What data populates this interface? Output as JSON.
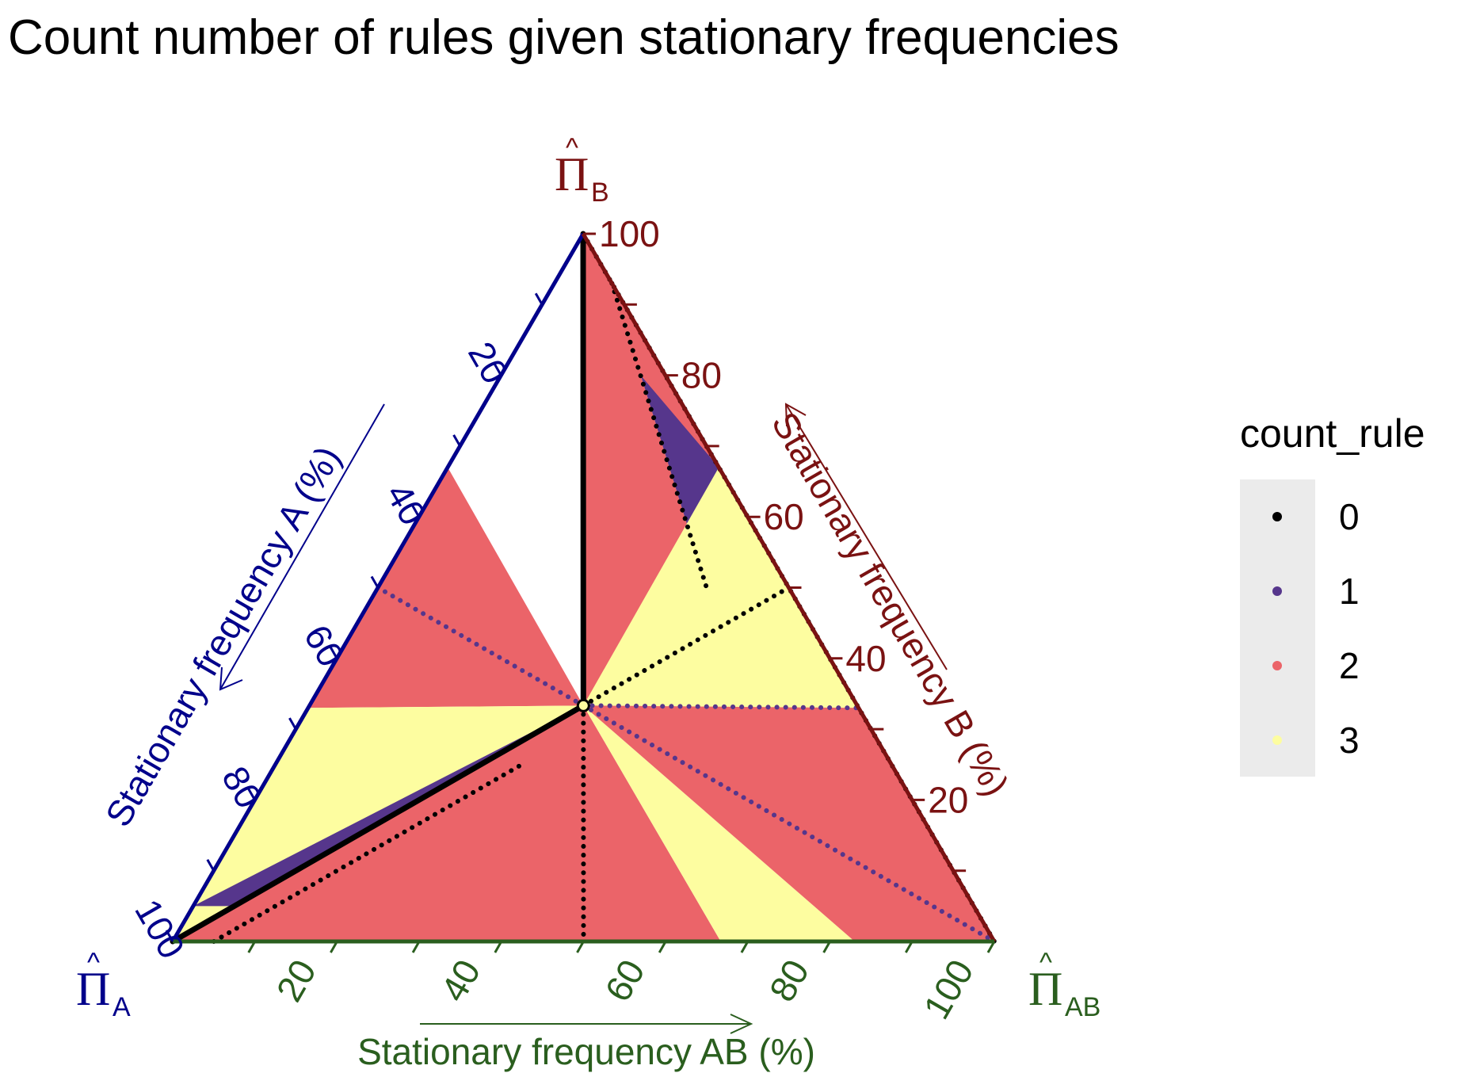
{
  "chart_data": {
    "type": "ternary",
    "title": "Count number of rules given stationary frequencies",
    "vertices": [
      {
        "key": "A",
        "symbol": "Π",
        "subscript": "A",
        "color": "#00008b"
      },
      {
        "key": "B",
        "symbol": "Π",
        "subscript": "B",
        "color": "#7a1212"
      },
      {
        "key": "AB",
        "symbol": "Π",
        "subscript": "AB",
        "color": "#2a5e1e"
      }
    ],
    "axes": {
      "A": {
        "label": "Stationary frequency A (%)",
        "color": "#00008b",
        "ticks": [
          "20",
          "40",
          "60",
          "80",
          "100"
        ]
      },
      "B": {
        "label": "Stationary frequency B (%)",
        "color": "#7a1212",
        "ticks": [
          "20",
          "40",
          "60",
          "80",
          "100"
        ]
      },
      "AB": {
        "label": "Stationary frequency AB (%)",
        "color": "#2a5e1e",
        "ticks": [
          "20",
          "40",
          "60",
          "80",
          "100"
        ]
      }
    },
    "center_point": {
      "A": 33.3,
      "B": 33.3,
      "AB": 33.3
    },
    "regions": [
      {
        "count_rule": 3,
        "vertices": [
          [
            0,
            100,
            0
          ],
          [
            0,
            67,
            33
          ],
          [
            33.3,
            33.3,
            33.3
          ]
        ]
      },
      {
        "count_rule": 2,
        "vertices": [
          [
            0,
            67,
            33
          ],
          [
            0,
            33,
            67
          ],
          [
            33.3,
            33.3,
            33.3
          ]
        ]
      },
      {
        "count_rule": 1,
        "vertices": [
          [
            0,
            95,
            5
          ],
          [
            0,
            65,
            35
          ],
          [
            25,
            40,
            35
          ],
          [
            33.3,
            33.3,
            33.3
          ],
          [
            10,
            50,
            40
          ],
          [
            3,
            80,
            17
          ]
        ]
      },
      {
        "count_rule": 2,
        "vertices": [
          [
            0,
            100,
            0
          ],
          [
            0,
            67,
            33
          ],
          [
            3,
            80,
            17
          ],
          [
            10,
            50,
            40
          ],
          [
            33.3,
            33.3,
            33.3
          ]
        ]
      },
      {
        "count_rule": 2,
        "vertices": [
          [
            33.3,
            33.3,
            33.3
          ],
          [
            67,
            33,
            0
          ],
          [
            33,
            67,
            0
          ]
        ]
      },
      {
        "count_rule": 3,
        "vertices": [
          [
            0,
            67,
            33
          ],
          [
            0,
            33,
            67
          ],
          [
            33.3,
            33.3,
            33.3
          ]
        ]
      },
      {
        "count_rule": 3,
        "vertices": [
          [
            33.3,
            33.3,
            33.3
          ],
          [
            67,
            33,
            0
          ],
          [
            100,
            0,
            0
          ]
        ]
      },
      {
        "count_rule": 1,
        "vertices": [
          [
            33.3,
            33.3,
            33.3
          ],
          [
            95,
            5,
            0
          ],
          [
            80,
            5,
            15
          ],
          [
            45,
            25,
            30
          ]
        ]
      },
      {
        "count_rule": 2,
        "vertices": [
          [
            100,
            0,
            0
          ],
          [
            33.3,
            33.3,
            33.3
          ],
          [
            33.3,
            0,
            66.7
          ]
        ]
      },
      {
        "count_rule": 3,
        "vertices": [
          [
            33.3,
            33.3,
            33.3
          ],
          [
            33.3,
            0,
            66.7
          ],
          [
            17,
            0,
            83
          ]
        ]
      },
      {
        "count_rule": 2,
        "vertices": [
          [
            33.3,
            33.3,
            33.3
          ],
          [
            17,
            0,
            83
          ],
          [
            0,
            0,
            100
          ],
          [
            0,
            33,
            67
          ]
        ]
      }
    ],
    "boundaries": [
      {
        "count_rule": 0,
        "from": [
          33.3,
          33.3,
          33.3
        ],
        "to": [
          0,
          100,
          0
        ],
        "style": "solid"
      },
      {
        "count_rule": 0,
        "from": [
          33.3,
          33.3,
          33.3
        ],
        "to": [
          100,
          0,
          0
        ],
        "style": "solid"
      },
      {
        "count_rule": 0,
        "from": [
          33.3,
          33.3,
          33.3
        ],
        "to": [
          0,
          50,
          50
        ],
        "style": "dotted"
      },
      {
        "count_rule": 0,
        "from": [
          33.3,
          33.3,
          33.3
        ],
        "to": [
          50,
          0,
          50
        ],
        "style": "dotted"
      },
      {
        "count_rule": 0,
        "from": [
          0,
          100,
          0
        ],
        "to": [
          0,
          0,
          100
        ],
        "style": "dotted"
      },
      {
        "count_rule": 0,
        "from": [
          0,
          93,
          7
        ],
        "to": [
          10,
          50,
          40
        ],
        "style": "dotted"
      },
      {
        "count_rule": 0,
        "from": [
          95,
          0,
          5
        ],
        "to": [
          45,
          25,
          30
        ],
        "style": "dotted"
      },
      {
        "count_rule": 1,
        "from": [
          33.3,
          33.3,
          33.3
        ],
        "to": [
          50,
          50,
          0
        ],
        "style": "dotted"
      },
      {
        "count_rule": 1,
        "from": [
          33.3,
          33.3,
          33.3
        ],
        "to": [
          0,
          0,
          100
        ],
        "style": "dotted"
      },
      {
        "count_rule": 1,
        "from": [
          33.3,
          33.3,
          33.3
        ],
        "to": [
          0,
          33,
          67
        ],
        "style": "dotted"
      }
    ],
    "legend": {
      "title": "count_rule",
      "position": "right",
      "items": [
        {
          "label": "0",
          "color": "#000000"
        },
        {
          "label": "1",
          "color": "#56368c"
        },
        {
          "label": "2",
          "color": "#eb6469"
        },
        {
          "label": "3",
          "color": "#fdfda0"
        }
      ]
    }
  }
}
